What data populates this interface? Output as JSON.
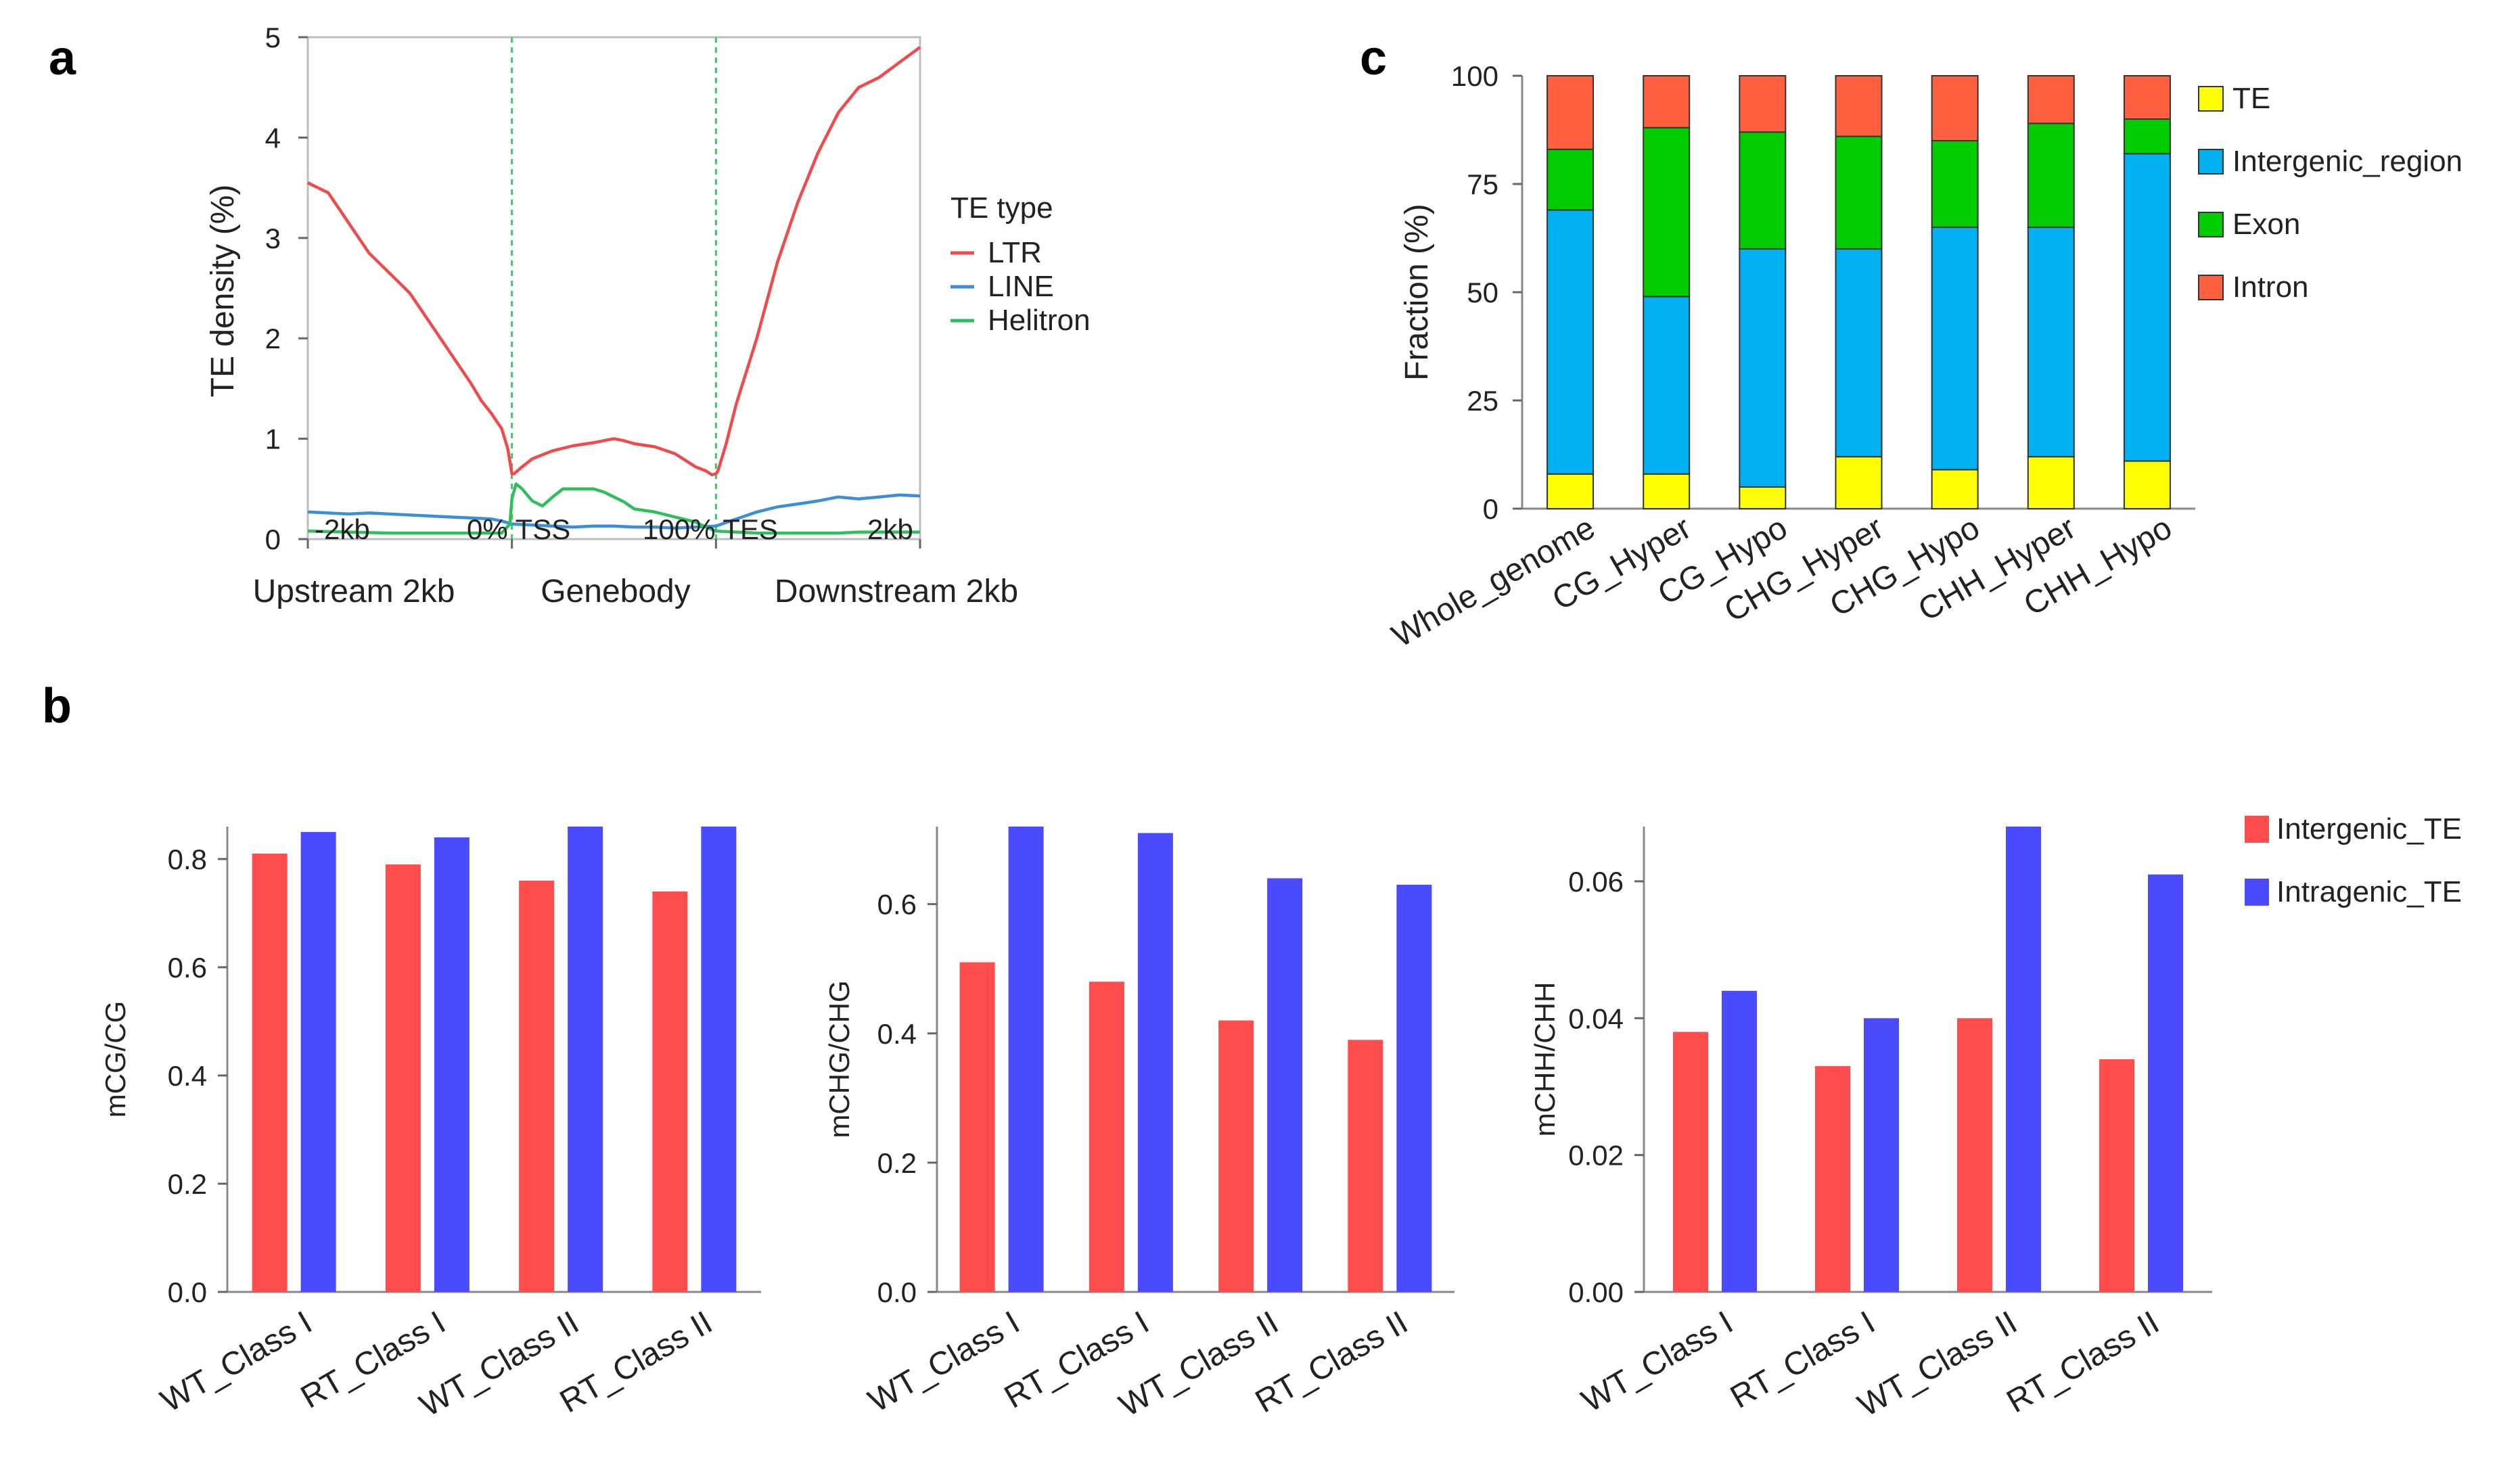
{
  "panels": {
    "a": {
      "letter": "a"
    },
    "b": {
      "letter": "b"
    },
    "c": {
      "letter": "c"
    }
  },
  "chart_data": [
    {
      "id": "a",
      "type": "line",
      "title": "",
      "ylabel": "TE density (%)",
      "xlabel": "",
      "ylim": [
        0,
        5
      ],
      "yticks": [
        0,
        1,
        2,
        3,
        4,
        5
      ],
      "x_tick_labels": [
        "-2kb",
        "0% TSS",
        "100% TES",
        "2kb"
      ],
      "region_labels": [
        "Upstream 2kb",
        "Genebody",
        "Downstream  2kb"
      ],
      "legend_title": "TE type",
      "x_range": [
        0,
        300
      ],
      "vlines": [
        100,
        200
      ],
      "colors": {
        "LTR": "#f04a4a",
        "LINE": "#3a8fd6",
        "Helitron": "#2fbf5a",
        "vline": "#33cc66"
      },
      "series": [
        {
          "name": "LTR",
          "x": [
            0,
            5,
            10,
            15,
            20,
            30,
            40,
            50,
            60,
            70,
            80,
            85,
            90,
            95,
            98,
            100,
            101,
            105,
            110,
            120,
            130,
            140,
            150,
            155,
            160,
            170,
            180,
            190,
            195,
            198,
            200,
            201,
            205,
            210,
            220,
            230,
            240,
            250,
            260,
            270,
            275,
            280,
            290,
            300
          ],
          "y": [
            3.55,
            3.5,
            3.45,
            3.3,
            3.15,
            2.85,
            2.65,
            2.45,
            2.15,
            1.85,
            1.55,
            1.38,
            1.25,
            1.1,
            0.9,
            0.65,
            0.65,
            0.72,
            0.8,
            0.88,
            0.93,
            0.96,
            1.0,
            0.98,
            0.95,
            0.92,
            0.85,
            0.72,
            0.68,
            0.64,
            0.65,
            0.68,
            0.95,
            1.35,
            2.0,
            2.75,
            3.35,
            3.85,
            4.25,
            4.5,
            4.55,
            4.6,
            4.75,
            4.9
          ]
        },
        {
          "name": "LINE",
          "x": [
            0,
            10,
            20,
            30,
            40,
            50,
            60,
            70,
            80,
            90,
            95,
            100,
            110,
            120,
            130,
            140,
            150,
            160,
            170,
            180,
            190,
            200,
            210,
            220,
            230,
            240,
            250,
            260,
            270,
            280,
            290,
            300
          ],
          "y": [
            0.27,
            0.26,
            0.25,
            0.26,
            0.25,
            0.24,
            0.23,
            0.22,
            0.21,
            0.2,
            0.18,
            0.15,
            0.14,
            0.13,
            0.12,
            0.13,
            0.13,
            0.12,
            0.12,
            0.11,
            0.12,
            0.13,
            0.2,
            0.27,
            0.32,
            0.35,
            0.38,
            0.42,
            0.4,
            0.42,
            0.44,
            0.43
          ]
        },
        {
          "name": "Helitron",
          "x": [
            0,
            20,
            40,
            60,
            80,
            95,
            99,
            100,
            102,
            105,
            110,
            115,
            120,
            125,
            130,
            135,
            140,
            145,
            150,
            155,
            160,
            170,
            180,
            190,
            195,
            200,
            210,
            220,
            230,
            240,
            250,
            260,
            270,
            280,
            290,
            300
          ],
          "y": [
            0.08,
            0.07,
            0.06,
            0.06,
            0.06,
            0.06,
            0.15,
            0.4,
            0.55,
            0.5,
            0.38,
            0.33,
            0.42,
            0.5,
            0.5,
            0.5,
            0.5,
            0.47,
            0.42,
            0.37,
            0.3,
            0.27,
            0.22,
            0.17,
            0.12,
            0.08,
            0.07,
            0.06,
            0.06,
            0.06,
            0.06,
            0.06,
            0.07,
            0.07,
            0.07,
            0.07
          ]
        }
      ]
    },
    {
      "id": "c",
      "type": "bar",
      "stacked": true,
      "title": "",
      "ylabel": "Fraction (%)",
      "xlabel": "",
      "ylim": [
        0,
        100
      ],
      "yticks": [
        0,
        25,
        50,
        75,
        100
      ],
      "categories": [
        "Whole_genome",
        "CG_Hyper",
        "CG_Hypo",
        "CHG_Hyper",
        "CHG_Hypo",
        "CHH_Hyper",
        "CHH_Hypo"
      ],
      "legend_labels": [
        "TE",
        "Intergenic_region",
        "Exon",
        "Intron"
      ],
      "series": [
        {
          "name": "TE",
          "color": "#ffff00",
          "values": [
            8,
            8,
            5,
            12,
            9,
            12,
            11
          ]
        },
        {
          "name": "Intergenic_region",
          "color": "#00b0f0",
          "values": [
            61,
            41,
            55,
            48,
            56,
            53,
            71
          ]
        },
        {
          "name": "Exon",
          "color": "#00cc00",
          "values": [
            14,
            39,
            27,
            26,
            20,
            24,
            8
          ]
        },
        {
          "name": "Intron",
          "color": "#ff6040",
          "values": [
            17,
            12,
            13,
            14,
            15,
            11,
            10
          ]
        }
      ]
    },
    {
      "id": "b1",
      "type": "bar",
      "title": "",
      "ylabel": "mCG/CG",
      "xlabel": "",
      "ylim": [
        0,
        0.86
      ],
      "yticks": [
        0.0,
        0.2,
        0.4,
        0.6,
        0.8
      ],
      "ytick_labels": [
        "0.0",
        "0.2",
        "0.4",
        "0.6",
        "0.8"
      ],
      "categories": [
        "WT_Class I",
        "RT_Class I",
        "WT_Class II",
        "RT_Class II"
      ],
      "series": [
        {
          "name": "Intergenic_TE",
          "color": "#ff4d4d",
          "values": [
            0.81,
            0.79,
            0.76,
            0.74
          ]
        },
        {
          "name": "Intragenic_TE",
          "color": "#4a4aff",
          "values": [
            0.85,
            0.84,
            0.86,
            0.86
          ]
        }
      ]
    },
    {
      "id": "b2",
      "type": "bar",
      "title": "",
      "ylabel": "mCHG/CHG",
      "xlabel": "",
      "ylim": [
        0,
        0.72
      ],
      "yticks": [
        0.0,
        0.2,
        0.4,
        0.6
      ],
      "ytick_labels": [
        "0.0",
        "0.2",
        "0.4",
        "0.6"
      ],
      "categories": [
        "WT_Class I",
        "RT_Class I",
        "WT_Class II",
        "RT_Class II"
      ],
      "series": [
        {
          "name": "Intergenic_TE",
          "color": "#ff4d4d",
          "values": [
            0.51,
            0.48,
            0.42,
            0.39
          ]
        },
        {
          "name": "Intragenic_TE",
          "color": "#4a4aff",
          "values": [
            0.72,
            0.71,
            0.64,
            0.63
          ]
        }
      ]
    },
    {
      "id": "b3",
      "type": "bar",
      "title": "",
      "ylabel": "mCHH/CHH",
      "xlabel": "",
      "ylim": [
        0,
        0.068
      ],
      "yticks": [
        0.0,
        0.02,
        0.04,
        0.06
      ],
      "ytick_labels": [
        "0.00",
        "0.02",
        "0.04",
        "0.06"
      ],
      "categories": [
        "WT_Class I",
        "RT_Class I",
        "WT_Class II",
        "RT_Class II"
      ],
      "legend_labels": [
        "Intergenic_TE",
        "Intragenic_TE"
      ],
      "series": [
        {
          "name": "Intergenic_TE",
          "color": "#ff4d4d",
          "values": [
            0.038,
            0.033,
            0.04,
            0.034
          ]
        },
        {
          "name": "Intragenic_TE",
          "color": "#4a4aff",
          "values": [
            0.044,
            0.04,
            0.068,
            0.061
          ]
        }
      ]
    }
  ]
}
